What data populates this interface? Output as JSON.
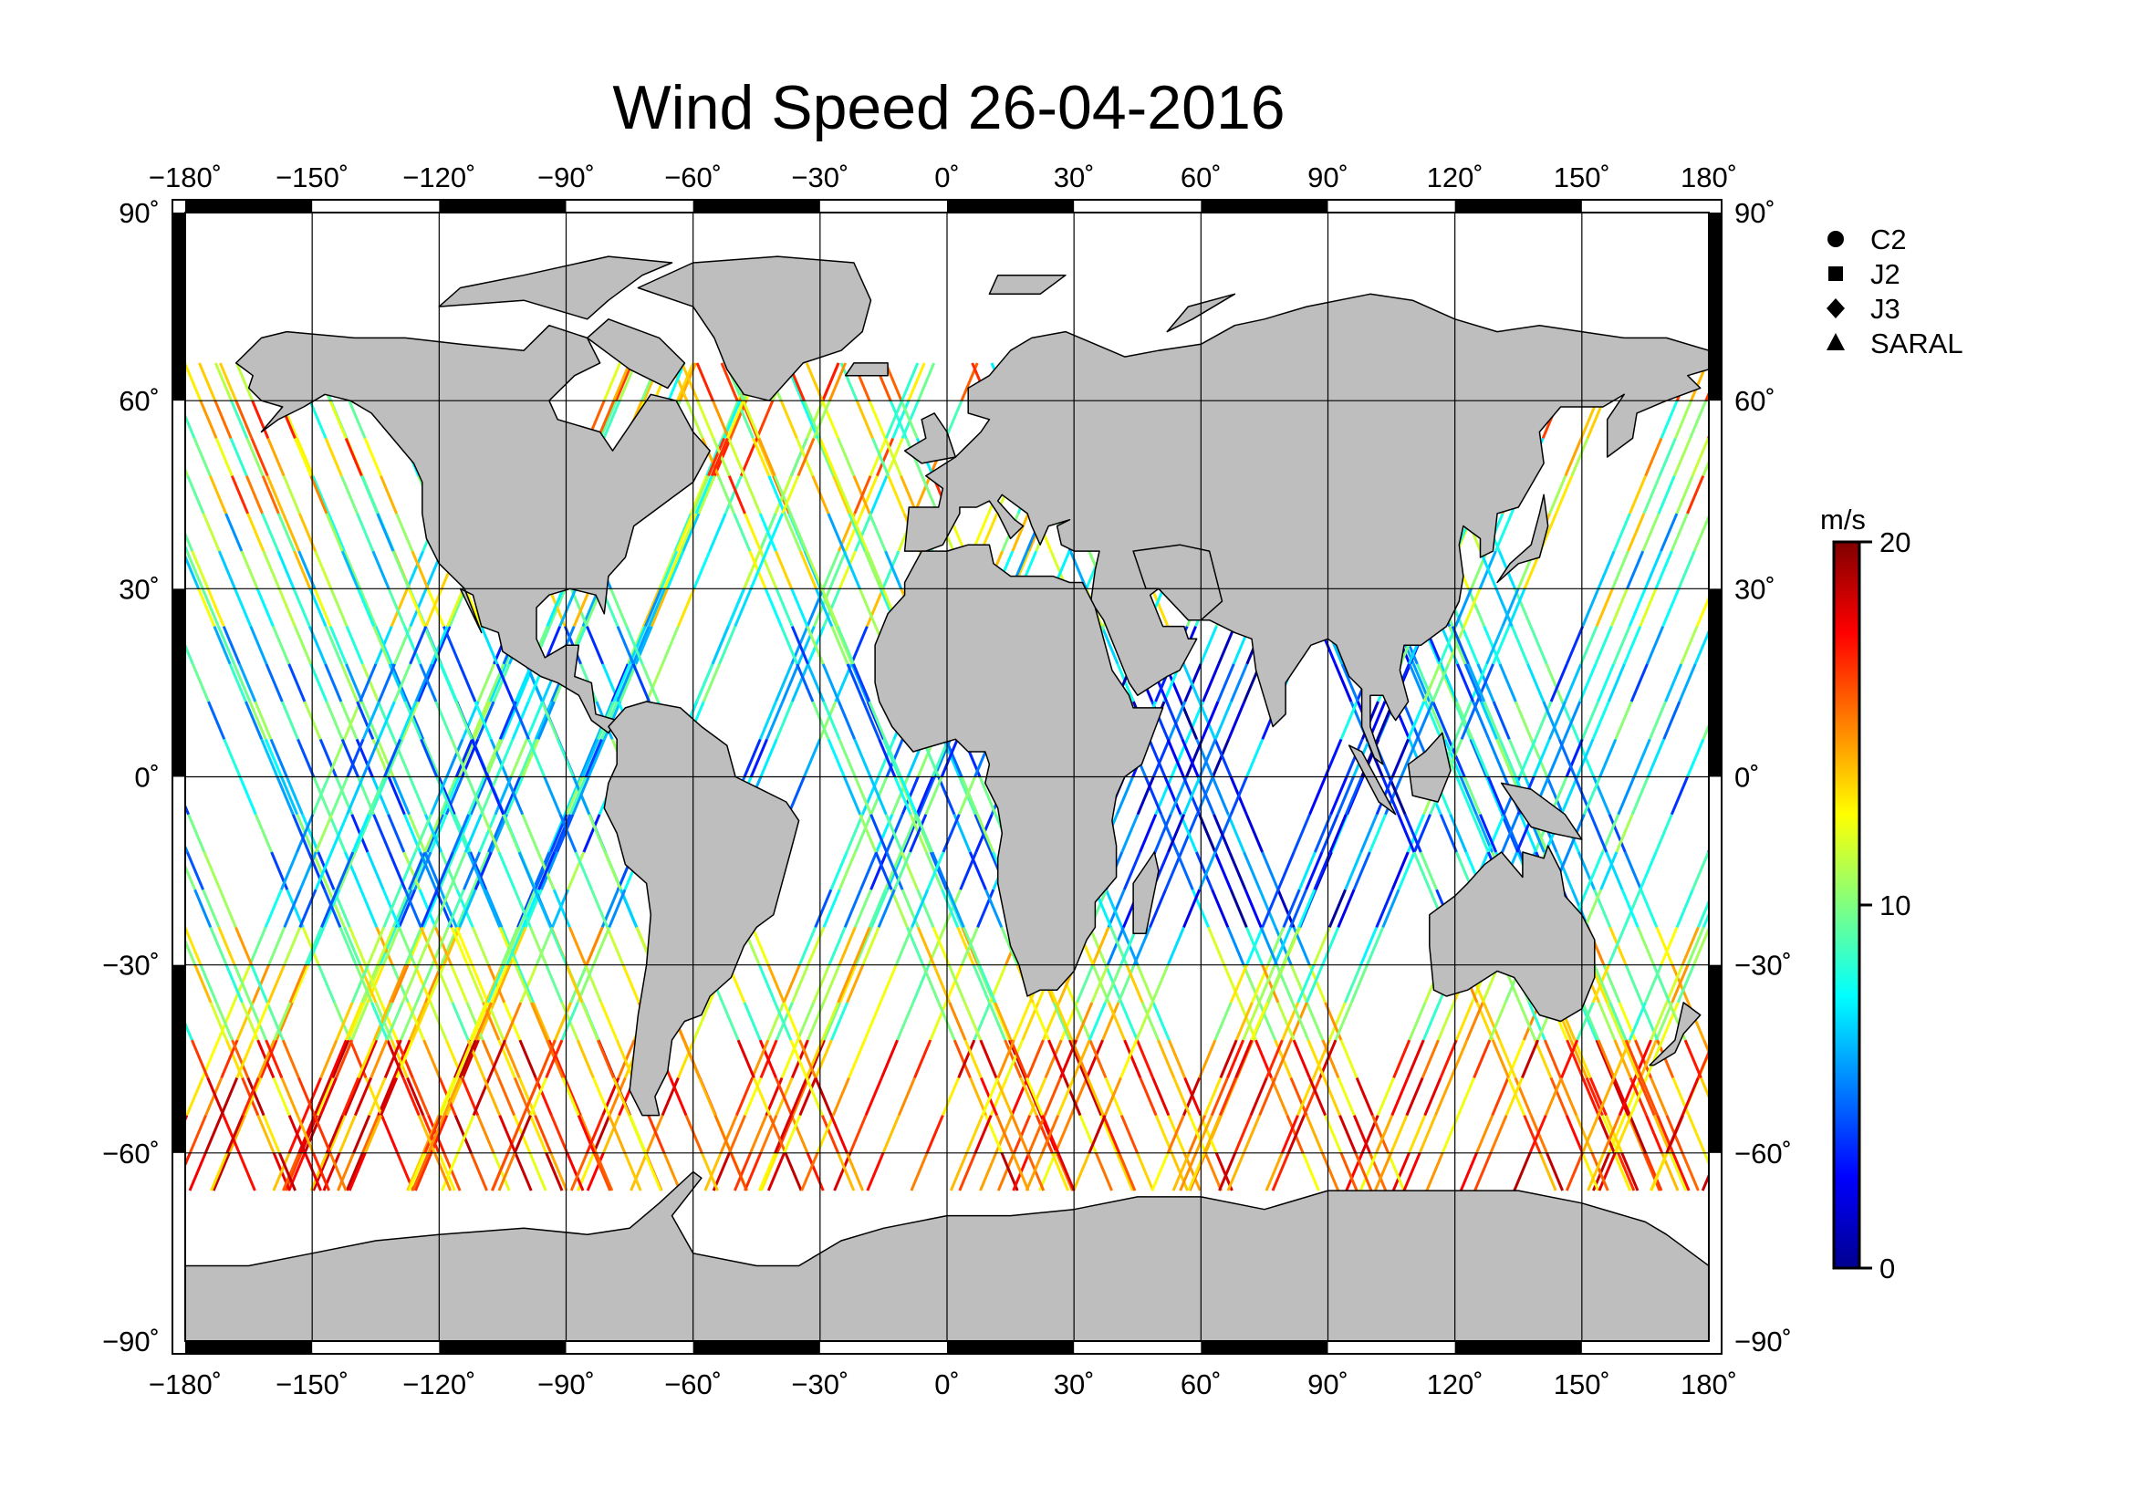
{
  "title": "Wind Speed 26-04-2016",
  "map": {
    "lon_range": [
      -180,
      180
    ],
    "lat_range": [
      -90,
      90
    ],
    "lon_ticks": [
      -180,
      -150,
      -120,
      -90,
      -60,
      -30,
      0,
      30,
      60,
      90,
      120,
      150,
      180
    ],
    "lat_ticks": [
      90,
      60,
      30,
      0,
      -30,
      -60,
      -90
    ],
    "lon_tick_labels": [
      "−180˚",
      "−150˚",
      "−120˚",
      "−90˚",
      "−60˚",
      "−30˚",
      "0˚",
      "30˚",
      "60˚",
      "90˚",
      "120˚",
      "150˚",
      "180˚"
    ],
    "lat_tick_labels": [
      "90˚",
      "60˚",
      "30˚",
      "0˚",
      "−30˚",
      "−60˚",
      "−90˚"
    ],
    "land_color": "#bebebe",
    "coast_color": "#000000",
    "grid": true
  },
  "legend": {
    "placement": "top-right",
    "items": [
      {
        "label": "C2",
        "symbol": "circle"
      },
      {
        "label": "J2",
        "symbol": "square"
      },
      {
        "label": "J3",
        "symbol": "diamond"
      },
      {
        "label": "SARAL",
        "symbol": "triangle"
      }
    ]
  },
  "colorbar": {
    "unit": "m/s",
    "min": 0,
    "max": 20,
    "tick_values": [
      20,
      10,
      0
    ],
    "tick_labels": [
      "20",
      "10",
      "0"
    ],
    "colormap": [
      "#00008f",
      "#0000ff",
      "#0080ff",
      "#00ffff",
      "#80ff80",
      "#ffff00",
      "#ff8000",
      "#ff0000",
      "#800000"
    ]
  },
  "chart_data": {
    "type": "scatter",
    "title": "Wind Speed 26-04-2016",
    "xlabel": "",
    "ylabel": "",
    "xlim": [
      -180,
      180
    ],
    "ylim": [
      -90,
      90
    ],
    "value_unit": "m/s",
    "value_range": [
      0,
      20
    ],
    "series": [
      {
        "name": "C2"
      },
      {
        "name": "J2"
      },
      {
        "name": "J3"
      },
      {
        "name": "SARAL"
      }
    ]
  }
}
